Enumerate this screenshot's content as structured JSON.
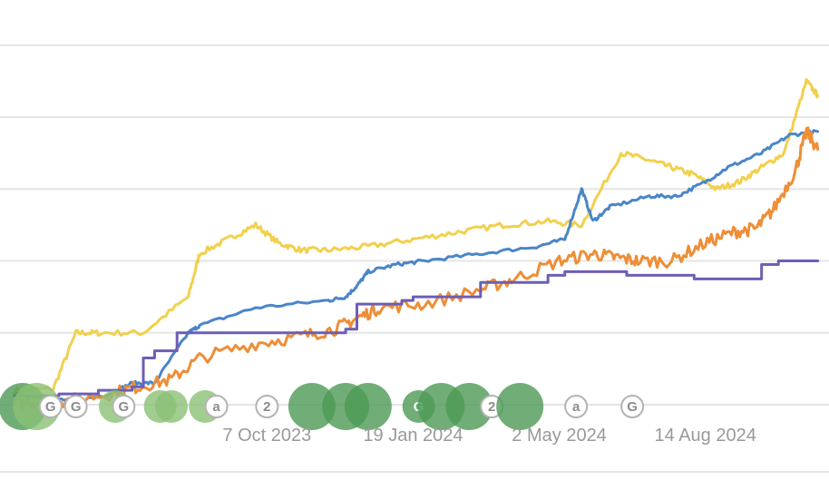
{
  "chart_data": {
    "type": "line",
    "title": "",
    "xlabel": "",
    "ylabel": "",
    "grid": true,
    "x_ticks": [
      "7 Oct 2023",
      "19 Jan 2024",
      "2 May 2024",
      "14 Aug 2024"
    ],
    "x_tick_index": [
      0.22,
      0.48,
      0.74,
      1.0
    ],
    "x_range": [
      -0.255,
      1.22
    ],
    "y_range": [
      0,
      10.4
    ],
    "y_gridlines": [
      0,
      2,
      4,
      6,
      8,
      10
    ],
    "colors": {
      "yellow": "#f2d04e",
      "blue": "#4a86c8",
      "orange": "#ee8e36",
      "purple": "#6e5db5",
      "marker_green": "#4e9a55",
      "marker_light_green": "#8bc076",
      "badge_grey": "#b3b3b3"
    },
    "series": [
      {
        "color_key": "yellow",
        "x": [
          -0.23,
          -0.16,
          -0.12,
          -0.08,
          0.0,
          0.08,
          0.1,
          0.15,
          0.2,
          0.24,
          0.28,
          0.33,
          0.4,
          0.48,
          0.56,
          0.64,
          0.72,
          0.78,
          0.85,
          0.9,
          0.94,
          0.98,
          1.02,
          1.06,
          1.1,
          1.14,
          1.18,
          1.2
        ],
        "y": [
          0.4,
          0.45,
          2.0,
          2.0,
          2.0,
          3.0,
          4.2,
          4.6,
          5.0,
          4.5,
          4.3,
          4.3,
          4.4,
          4.6,
          4.8,
          5.0,
          5.1,
          5.0,
          7.0,
          6.8,
          6.6,
          6.4,
          6.0,
          6.2,
          6.6,
          7.0,
          9.0,
          8.6
        ]
      },
      {
        "color_key": "blue",
        "x": [
          -0.23,
          -0.18,
          -0.12,
          -0.06,
          -0.02,
          0.02,
          0.08,
          0.1,
          0.2,
          0.33,
          0.36,
          0.38,
          0.4,
          0.45,
          0.5,
          0.6,
          0.7,
          0.75,
          0.78,
          0.8,
          0.83,
          0.9,
          0.95,
          1.0,
          1.04,
          1.1,
          1.15,
          1.2
        ],
        "y": [
          0.3,
          0.2,
          0.1,
          0.3,
          0.6,
          0.6,
          2.0,
          2.2,
          2.7,
          2.9,
          3.0,
          3.3,
          3.7,
          3.9,
          4.0,
          4.2,
          4.4,
          4.6,
          6.0,
          5.1,
          5.5,
          5.8,
          5.8,
          6.2,
          6.6,
          7.0,
          7.5,
          7.6
        ]
      },
      {
        "color_key": "orange",
        "x": [
          -0.23,
          -0.18,
          -0.14,
          -0.06,
          -0.01,
          0.05,
          0.1,
          0.2,
          0.28,
          0.34,
          0.38,
          0.42,
          0.5,
          0.6,
          0.66,
          0.74,
          0.8,
          0.84,
          0.88,
          0.94,
          1.0,
          1.05,
          1.09,
          1.12,
          1.16,
          1.18,
          1.2
        ],
        "y": [
          0.0,
          0.1,
          0.1,
          0.3,
          0.5,
          0.7,
          1.3,
          1.7,
          1.9,
          2.1,
          2.4,
          2.7,
          2.8,
          3.2,
          3.5,
          4.0,
          4.2,
          4.1,
          4.0,
          4.0,
          4.5,
          4.8,
          4.9,
          5.4,
          6.5,
          7.6,
          7.1
        ]
      },
      {
        "color_key": "purple",
        "x": [
          -0.23,
          -0.15,
          -0.08,
          -0.02,
          0.0,
          0.02,
          0.06,
          0.12,
          0.2,
          0.3,
          0.36,
          0.38,
          0.46,
          0.48,
          0.6,
          0.64,
          0.72,
          0.75,
          0.86,
          0.98,
          1.1,
          1.13,
          1.17,
          1.2
        ],
        "y": [
          0.25,
          0.3,
          0.4,
          0.5,
          1.3,
          1.5,
          2.0,
          2.0,
          2.0,
          2.0,
          2.1,
          2.8,
          2.9,
          3.0,
          3.4,
          3.4,
          3.6,
          3.7,
          3.6,
          3.5,
          3.9,
          4.0,
          4.0,
          4.0
        ]
      }
    ],
    "markers": [
      {
        "x": -0.215,
        "size": "large",
        "style": "green",
        "glyph": ""
      },
      {
        "x": -0.19,
        "size": "large",
        "style": "light",
        "glyph": ""
      },
      {
        "x": -0.165,
        "size": "small",
        "style": "badge",
        "glyph": "G"
      },
      {
        "x": -0.12,
        "size": "small",
        "style": "badge",
        "glyph": "G"
      },
      {
        "x": -0.05,
        "size": "medium",
        "style": "light",
        "glyph": ""
      },
      {
        "x": -0.035,
        "size": "small",
        "style": "badge",
        "glyph": "G"
      },
      {
        "x": 0.03,
        "size": "medium",
        "style": "light",
        "glyph": ""
      },
      {
        "x": 0.05,
        "size": "medium",
        "style": "light",
        "glyph": ""
      },
      {
        "x": 0.11,
        "size": "medium",
        "style": "light",
        "glyph": ""
      },
      {
        "x": 0.13,
        "size": "small",
        "style": "badge",
        "glyph": "a"
      },
      {
        "x": 0.22,
        "size": "small",
        "style": "badge",
        "glyph": "2"
      },
      {
        "x": 0.3,
        "size": "large",
        "style": "green",
        "glyph": ""
      },
      {
        "x": 0.36,
        "size": "large",
        "style": "green",
        "glyph": ""
      },
      {
        "x": 0.4,
        "size": "large",
        "style": "green",
        "glyph": ""
      },
      {
        "x": 0.49,
        "size": "medium",
        "style": "green",
        "glyph": "G"
      },
      {
        "x": 0.53,
        "size": "large",
        "style": "green",
        "glyph": ""
      },
      {
        "x": 0.58,
        "size": "large",
        "style": "green",
        "glyph": ""
      },
      {
        "x": 0.62,
        "size": "small",
        "style": "badge",
        "glyph": "2"
      },
      {
        "x": 0.67,
        "size": "large",
        "style": "green",
        "glyph": ""
      },
      {
        "x": 0.77,
        "size": "small",
        "style": "badge",
        "glyph": "a"
      },
      {
        "x": 0.87,
        "size": "small",
        "style": "badge",
        "glyph": "G"
      }
    ]
  }
}
